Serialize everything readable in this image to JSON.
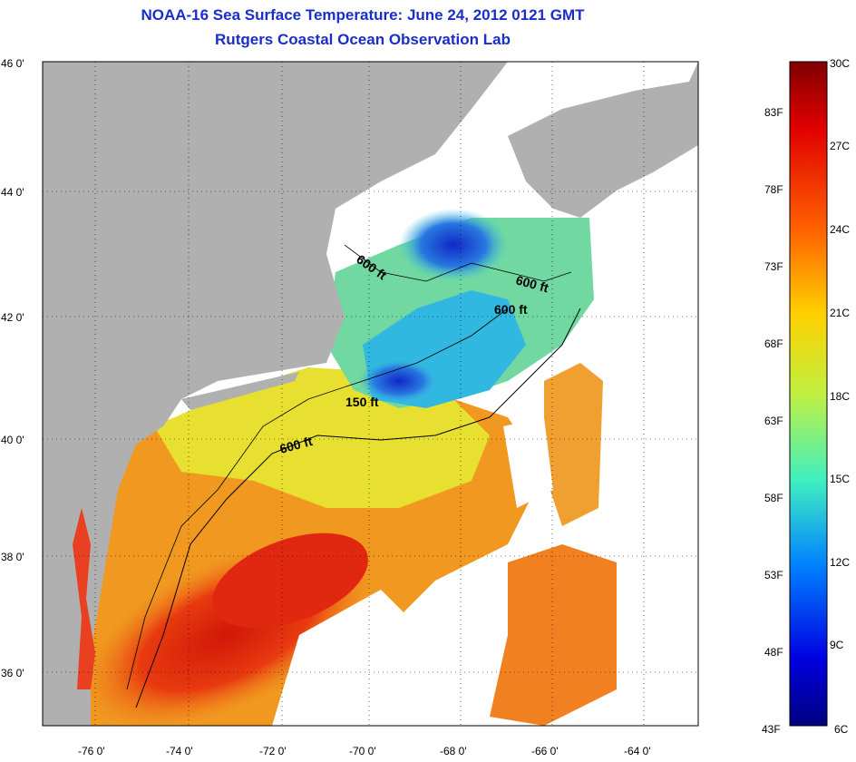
{
  "title_line1": "NOAA-16 Sea Surface Temperature:  June 24, 2012 0121 GMT",
  "title_line2": "Rutgers Coastal Ocean Observation Lab",
  "map": {
    "lat_ticks": [
      "46 0'",
      "44 0'",
      "42 0'",
      "40 0'",
      "38 0'",
      "36 0'"
    ],
    "lon_ticks": [
      "-76 0'",
      "-74 0'",
      "-72 0'",
      "-70 0'",
      "-68 0'",
      "-66 0'",
      "-64 0'"
    ],
    "depth_labels": [
      "600 ft",
      "600 ft",
      "600 ft",
      "150 ft",
      "600 ft"
    ],
    "colors": {
      "land": "#b0b0b0",
      "no_data": "#ffffff",
      "warm": "#e83010",
      "mid": "#f0a020",
      "cool": "#30c0e0",
      "cold": "#1030d0"
    }
  },
  "colorbar": {
    "celsius": [
      "30C",
      "27C",
      "24C",
      "21C",
      "18C",
      "15C",
      "12C",
      "9C",
      "6C"
    ],
    "fahrenheit": [
      "83F",
      "78F",
      "73F",
      "68F",
      "63F",
      "58F",
      "53F",
      "48F",
      "43F"
    ]
  }
}
